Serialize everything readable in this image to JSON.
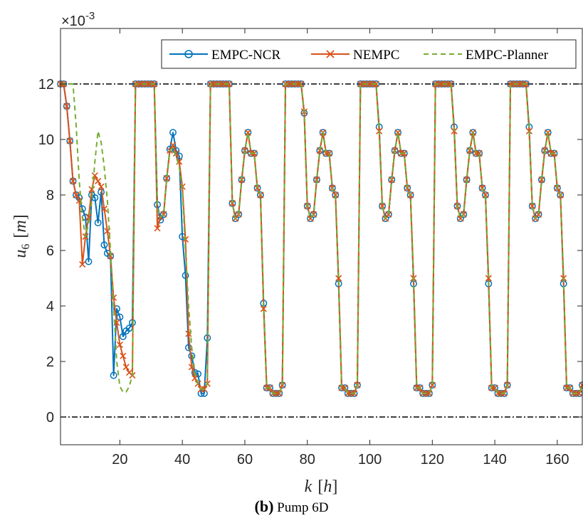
{
  "chart_data": {
    "type": "line",
    "multiplier_label": "×10",
    "multiplier_exponent": "-3",
    "ylabel_var": "u",
    "ylabel_sub": "6",
    "ylabel_unit": "m",
    "xlabel_var": "k",
    "xlabel_unit": "h",
    "xlim": [
      1,
      168
    ],
    "ylim": [
      -0.001,
      0.014
    ],
    "xticks": [
      20,
      40,
      60,
      80,
      100,
      120,
      140,
      160
    ],
    "yticks": [
      0,
      0.002,
      0.004,
      0.006,
      0.008,
      0.01,
      0.012
    ],
    "ytick_labels": [
      "0",
      "2",
      "4",
      "6",
      "8",
      "10",
      "12"
    ],
    "constraint_lines": [
      0,
      0.012
    ],
    "legend_position": "top-right",
    "grid": false,
    "series": [
      {
        "name": "EMPC-NCR",
        "color": "#0072BD",
        "marker": "circle",
        "x": [
          1,
          2,
          3,
          4,
          5,
          6,
          7,
          8,
          9,
          10,
          11,
          12,
          13,
          14,
          15,
          16,
          17,
          18,
          19,
          20,
          21,
          22,
          23,
          24,
          25,
          26,
          27,
          28,
          29,
          30,
          31,
          32,
          33,
          34,
          35,
          36,
          37,
          38,
          39,
          40,
          41,
          42,
          43,
          44,
          45,
          46,
          47,
          48,
          49,
          50,
          51,
          52,
          53,
          54,
          55,
          56,
          57,
          58,
          59,
          60,
          61,
          62,
          63,
          64,
          65,
          66,
          67,
          68,
          69,
          70,
          71,
          72,
          73,
          74,
          75,
          76,
          77,
          78,
          79,
          80,
          81,
          82,
          83,
          84,
          85,
          86,
          87,
          88,
          89,
          90,
          91,
          92,
          93,
          94,
          95,
          96,
          97,
          98,
          99,
          100,
          101,
          102,
          103,
          104,
          105,
          106,
          107,
          108,
          109,
          110,
          111,
          112,
          113,
          114,
          115,
          116,
          117,
          118,
          119,
          120,
          121,
          122,
          123,
          124,
          125,
          126,
          127,
          128,
          129,
          130,
          131,
          132,
          133,
          134,
          135,
          136,
          137,
          138,
          139,
          140,
          141,
          142,
          143,
          144,
          145,
          146,
          147,
          148,
          149,
          150,
          151,
          152,
          153,
          154,
          155,
          156,
          157,
          158,
          159,
          160,
          161,
          162,
          163,
          164,
          165,
          166,
          167,
          168
        ],
        "values": [
          0.012,
          0.012,
          0.0112,
          0.00995,
          0.0085,
          0.008,
          0.0079,
          0.0075,
          0.0072,
          0.0056,
          0.008,
          0.0079,
          0.007,
          0.0081,
          0.0062,
          0.0059,
          0.0058,
          0.0015,
          0.0039,
          0.0036,
          0.0029,
          0.0031,
          0.0032,
          0.0034,
          0.012,
          0.012,
          0.012,
          0.012,
          0.012,
          0.012,
          0.012,
          0.00765,
          0.0071,
          0.0073,
          0.0086,
          0.00965,
          0.01025,
          0.0096,
          0.0094,
          0.0065,
          0.0051,
          0.0025,
          0.0022,
          0.0016,
          0.00155,
          0.00085,
          0.00085,
          0.00285,
          0.012,
          0.012,
          0.012,
          0.012,
          0.012,
          0.012,
          0.012,
          0.0077,
          0.00715,
          0.0073,
          0.00855,
          0.0096,
          0.01025,
          0.0095,
          0.0095,
          0.00825,
          0.008,
          0.0041,
          0.00105,
          0.00105,
          0.00085,
          0.00085,
          0.00085,
          0.00115,
          0.012,
          0.012,
          0.012,
          0.012,
          0.012,
          0.012,
          0.01095,
          0.0076,
          0.00715,
          0.0073,
          0.00855,
          0.0096,
          0.01025,
          0.0095,
          0.0095,
          0.00825,
          0.008,
          0.0048,
          0.00105,
          0.00105,
          0.00085,
          0.00085,
          0.00085,
          0.00115,
          0.012,
          0.012,
          0.012,
          0.012,
          0.012,
          0.012,
          0.01045,
          0.0076,
          0.00715,
          0.0073,
          0.00855,
          0.0096,
          0.01025,
          0.0095,
          0.0095,
          0.00825,
          0.008,
          0.0048,
          0.00105,
          0.00105,
          0.00085,
          0.00085,
          0.00085,
          0.00115,
          0.012,
          0.012,
          0.012,
          0.012,
          0.012,
          0.012,
          0.01045,
          0.0076,
          0.00715,
          0.0073,
          0.00855,
          0.0096,
          0.01025,
          0.0095,
          0.0095,
          0.00825,
          0.008,
          0.0048,
          0.00105,
          0.00105,
          0.00085,
          0.00085,
          0.00085,
          0.00115,
          0.012,
          0.012,
          0.012,
          0.012,
          0.012,
          0.012,
          0.01045,
          0.0076,
          0.00715,
          0.0073,
          0.00855,
          0.0096,
          0.01025,
          0.0095,
          0.0095,
          0.00825,
          0.008,
          0.0048,
          0.00105,
          0.00105,
          0.00085,
          0.00085,
          0.00085,
          0.00115
        ]
      },
      {
        "name": "NEMPC",
        "color": "#D95319",
        "marker": "x",
        "x": [
          1,
          2,
          3,
          4,
          5,
          6,
          7,
          8,
          9,
          10,
          11,
          12,
          13,
          14,
          15,
          16,
          17,
          18,
          19,
          20,
          21,
          22,
          23,
          24,
          25,
          26,
          27,
          28,
          29,
          30,
          31,
          32,
          33,
          34,
          35,
          36,
          37,
          38,
          39,
          40,
          41,
          42,
          43,
          44,
          45,
          46,
          47,
          48,
          49,
          50,
          51,
          52,
          53,
          54,
          55,
          56,
          57,
          58,
          59,
          60,
          61,
          62,
          63,
          64,
          65,
          66,
          67,
          68,
          69,
          70,
          71,
          72,
          73,
          74,
          75,
          76,
          77,
          78,
          79,
          80,
          81,
          82,
          83,
          84,
          85,
          86,
          87,
          88,
          89,
          90,
          91,
          92,
          93,
          94,
          95,
          96,
          97,
          98,
          99,
          100,
          101,
          102,
          103,
          104,
          105,
          106,
          107,
          108,
          109,
          110,
          111,
          112,
          113,
          114,
          115,
          116,
          117,
          118,
          119,
          120,
          121,
          122,
          123,
          124,
          125,
          126,
          127,
          128,
          129,
          130,
          131,
          132,
          133,
          134,
          135,
          136,
          137,
          138,
          139,
          140,
          141,
          142,
          143,
          144,
          145,
          146,
          147,
          148,
          149,
          150,
          151,
          152,
          153,
          154,
          155,
          156,
          157,
          158,
          159,
          160,
          161,
          162,
          163,
          164,
          165,
          166,
          167,
          168
        ],
        "values": [
          0.012,
          0.012,
          0.0112,
          0.00995,
          0.0085,
          0.008,
          0.0078,
          0.0055,
          0.0065,
          0.0072,
          0.0082,
          0.0087,
          0.0085,
          0.0083,
          0.0075,
          0.0067,
          0.0058,
          0.0043,
          0.0034,
          0.0026,
          0.0022,
          0.0018,
          0.0016,
          0.0015,
          0.012,
          0.012,
          0.012,
          0.012,
          0.012,
          0.012,
          0.012,
          0.0068,
          0.0072,
          0.0073,
          0.0086,
          0.0096,
          0.0098,
          0.0095,
          0.0092,
          0.0083,
          0.0064,
          0.003,
          0.0018,
          0.0014,
          0.0012,
          0.001,
          0.001,
          0.0012,
          0.012,
          0.012,
          0.012,
          0.012,
          0.012,
          0.012,
          0.012,
          0.0077,
          0.00715,
          0.0073,
          0.00855,
          0.0096,
          0.01025,
          0.0095,
          0.0095,
          0.00825,
          0.008,
          0.0039,
          0.00105,
          0.00105,
          0.00085,
          0.00085,
          0.00085,
          0.00115,
          0.012,
          0.012,
          0.012,
          0.012,
          0.012,
          0.012,
          0.011,
          0.0076,
          0.00715,
          0.0073,
          0.00855,
          0.0096,
          0.01025,
          0.0095,
          0.0095,
          0.00825,
          0.008,
          0.005,
          0.00105,
          0.00105,
          0.00085,
          0.00085,
          0.00085,
          0.00115,
          0.012,
          0.012,
          0.012,
          0.012,
          0.012,
          0.012,
          0.0103,
          0.0076,
          0.00715,
          0.0073,
          0.00855,
          0.0096,
          0.01025,
          0.0095,
          0.0095,
          0.00825,
          0.008,
          0.005,
          0.00105,
          0.00105,
          0.00085,
          0.00085,
          0.00085,
          0.00115,
          0.012,
          0.012,
          0.012,
          0.012,
          0.012,
          0.012,
          0.0103,
          0.0076,
          0.00715,
          0.0073,
          0.00855,
          0.0096,
          0.01025,
          0.0095,
          0.0095,
          0.00825,
          0.008,
          0.005,
          0.00105,
          0.00105,
          0.00085,
          0.00085,
          0.00085,
          0.00115,
          0.012,
          0.012,
          0.012,
          0.012,
          0.012,
          0.012,
          0.0103,
          0.0076,
          0.00715,
          0.0073,
          0.00855,
          0.0096,
          0.01025,
          0.0095,
          0.0095,
          0.00825,
          0.008,
          0.005,
          0.00105,
          0.00105,
          0.00085,
          0.00085,
          0.00085,
          0.00115
        ]
      },
      {
        "name": "EMPC-Planner",
        "color": "#77AC30",
        "marker": "none",
        "dashed": true,
        "x": [
          1,
          2,
          3,
          4,
          5,
          6,
          7,
          8,
          9,
          10,
          11,
          12,
          13,
          14,
          15,
          16,
          17,
          18,
          19,
          20,
          21,
          22,
          23,
          24,
          25,
          26,
          27,
          28,
          29,
          30,
          31,
          32,
          33,
          34,
          35,
          36,
          37,
          38,
          39,
          40,
          41,
          42,
          43,
          44,
          45,
          46,
          47,
          48,
          49,
          50,
          51,
          52,
          53,
          54,
          55,
          56,
          57,
          58,
          59,
          60,
          61,
          62,
          63,
          64,
          65,
          66,
          67,
          68,
          69,
          70,
          71,
          72,
          73,
          74,
          75,
          76,
          77,
          78,
          79,
          80,
          81,
          82,
          83,
          84,
          85,
          86,
          87,
          88,
          89,
          90,
          91,
          92,
          93,
          94,
          95,
          96,
          97,
          98,
          99,
          100,
          101,
          102,
          103,
          104,
          105,
          106,
          107,
          108,
          109,
          110,
          111,
          112,
          113,
          114,
          115,
          116,
          117,
          118,
          119,
          120,
          121,
          122,
          123,
          124,
          125,
          126,
          127,
          128,
          129,
          130,
          131,
          132,
          133,
          134,
          135,
          136,
          137,
          138,
          139,
          140,
          141,
          142,
          143,
          144,
          145,
          146,
          147,
          148,
          149,
          150,
          151,
          152,
          153,
          154,
          155,
          156,
          157,
          158,
          159,
          160,
          161,
          162,
          163,
          164,
          165,
          166,
          167,
          168
        ],
        "values": [
          0.012,
          0.012,
          0.012,
          0.012,
          0.012,
          0.0105,
          0.0085,
          0.0072,
          0.0065,
          0.007,
          0.0078,
          0.0092,
          0.0103,
          0.0099,
          0.009,
          0.0078,
          0.006,
          0.004,
          0.002,
          0.0011,
          0.0009,
          0.0009,
          0.0011,
          0.0015,
          0.012,
          0.012,
          0.012,
          0.012,
          0.012,
          0.012,
          0.012,
          0.0075,
          0.0072,
          0.0073,
          0.0086,
          0.0096,
          0.0097,
          0.0094,
          0.009,
          0.0082,
          0.006,
          0.004,
          0.0025,
          0.0016,
          0.0012,
          0.001,
          0.001,
          0.0012,
          0.012,
          0.012,
          0.012,
          0.012,
          0.012,
          0.012,
          0.012,
          0.0077,
          0.00715,
          0.0073,
          0.00855,
          0.0096,
          0.01025,
          0.0095,
          0.0095,
          0.00825,
          0.008,
          0.0039,
          0.00105,
          0.00105,
          0.00085,
          0.00085,
          0.00085,
          0.00115,
          0.012,
          0.012,
          0.012,
          0.012,
          0.012,
          0.012,
          0.011,
          0.0076,
          0.00715,
          0.0073,
          0.00855,
          0.0096,
          0.01025,
          0.0095,
          0.0095,
          0.00825,
          0.008,
          0.005,
          0.00105,
          0.00105,
          0.00085,
          0.00085,
          0.00085,
          0.00115,
          0.012,
          0.012,
          0.012,
          0.012,
          0.012,
          0.012,
          0.0103,
          0.0076,
          0.00715,
          0.0073,
          0.00855,
          0.0096,
          0.01025,
          0.0095,
          0.0095,
          0.00825,
          0.008,
          0.005,
          0.00105,
          0.00105,
          0.00085,
          0.00085,
          0.00085,
          0.00115,
          0.012,
          0.012,
          0.012,
          0.012,
          0.012,
          0.012,
          0.0103,
          0.0076,
          0.00715,
          0.0073,
          0.00855,
          0.0096,
          0.01025,
          0.0095,
          0.0095,
          0.00825,
          0.008,
          0.005,
          0.00105,
          0.00105,
          0.00085,
          0.00085,
          0.00085,
          0.00115,
          0.012,
          0.012,
          0.012,
          0.012,
          0.012,
          0.012,
          0.0103,
          0.0076,
          0.00715,
          0.0073,
          0.00855,
          0.0096,
          0.01025,
          0.0095,
          0.0095,
          0.00825,
          0.008,
          0.005,
          0.00105,
          0.00105,
          0.00085,
          0.00085,
          0.00085,
          0.00115
        ]
      }
    ]
  },
  "caption": {
    "label": "(b)",
    "text": "Pump 6D"
  }
}
